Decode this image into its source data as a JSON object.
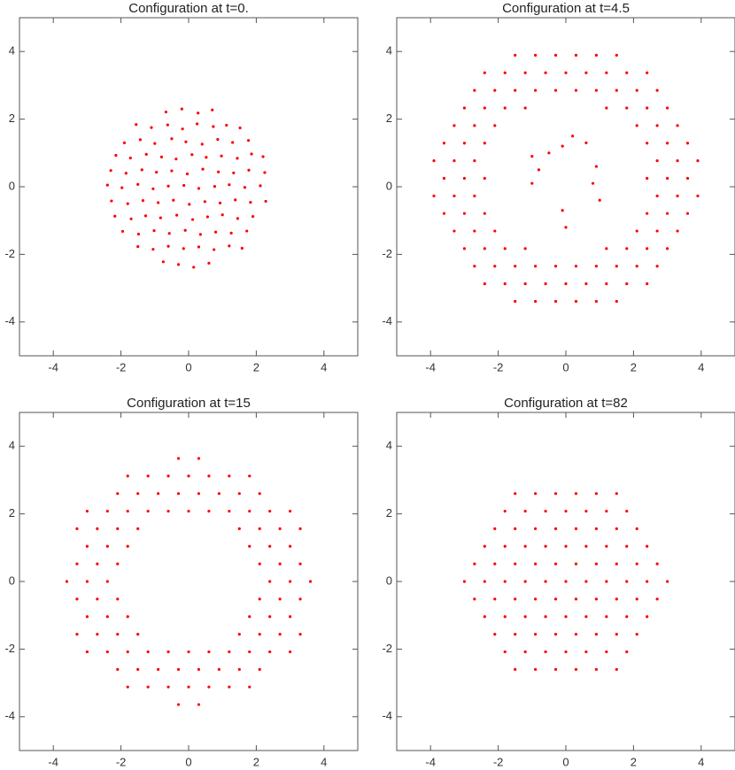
{
  "chart_data": [
    {
      "type": "scatter",
      "title": "Configuration at  t=0.",
      "color": "#ff0000",
      "xlim": [
        -5,
        5
      ],
      "ylim": [
        -5,
        5
      ],
      "xticks": [
        -4,
        -2,
        0,
        2,
        4
      ],
      "yticks": [
        -4,
        -2,
        0,
        2,
        4
      ],
      "x": [
        -0.67,
        -0.2,
        0.28,
        0.7,
        -1.55,
        -1.1,
        -0.62,
        -0.18,
        0.25,
        0.73,
        1.12,
        1.52,
        -1.9,
        -1.43,
        -1.0,
        -0.5,
        -0.08,
        0.4,
        0.86,
        1.3,
        1.77,
        -2.15,
        -1.72,
        -1.25,
        -0.8,
        -0.37,
        0.1,
        0.52,
        0.97,
        1.44,
        1.86,
        2.2,
        -2.3,
        -1.85,
        -1.38,
        -0.95,
        -0.5,
        -0.04,
        0.42,
        0.88,
        1.33,
        1.78,
        2.25,
        -2.4,
        -1.97,
        -1.5,
        -1.05,
        -0.6,
        -0.14,
        0.3,
        0.77,
        1.2,
        1.66,
        2.12,
        -2.28,
        -1.8,
        -1.35,
        -0.9,
        -0.45,
        0.02,
        0.48,
        0.93,
        1.38,
        1.83,
        2.28,
        -2.18,
        -1.7,
        -1.27,
        -0.83,
        -0.35,
        0.12,
        0.56,
        1.0,
        1.45,
        1.9,
        -1.95,
        -1.48,
        -1.02,
        -0.57,
        -0.1,
        0.35,
        0.8,
        1.26,
        1.72,
        -1.5,
        -1.05,
        -0.6,
        -0.15,
        0.3,
        0.75,
        1.2,
        1.58,
        -0.75,
        -0.3,
        0.15,
        0.6
      ],
      "y": [
        2.21,
        2.3,
        2.18,
        2.27,
        1.84,
        1.75,
        1.83,
        1.71,
        1.86,
        1.78,
        1.82,
        1.74,
        1.3,
        1.39,
        1.28,
        1.42,
        1.33,
        1.26,
        1.4,
        1.31,
        1.37,
        0.93,
        0.85,
        0.96,
        0.88,
        0.82,
        0.95,
        0.87,
        0.91,
        0.84,
        0.97,
        0.89,
        0.48,
        0.4,
        0.5,
        0.43,
        0.47,
        0.38,
        0.52,
        0.44,
        0.41,
        0.49,
        0.42,
        0.05,
        -0.03,
        0.07,
        -0.06,
        0.02,
        0.04,
        -0.05,
        0.01,
        0.06,
        -0.02,
        0.03,
        -0.42,
        -0.5,
        -0.41,
        -0.47,
        -0.4,
        -0.52,
        -0.44,
        -0.48,
        -0.39,
        -0.46,
        -0.43,
        -0.87,
        -0.95,
        -0.86,
        -0.92,
        -0.84,
        -0.97,
        -0.89,
        -0.83,
        -0.94,
        -0.88,
        -1.32,
        -1.4,
        -1.3,
        -1.38,
        -1.29,
        -1.41,
        -1.34,
        -1.37,
        -1.31,
        -1.77,
        -1.85,
        -1.76,
        -1.83,
        -1.78,
        -1.86,
        -1.75,
        -1.82,
        -2.22,
        -2.3,
        -2.38,
        -2.26
      ]
    },
    {
      "type": "scatter",
      "title": "Configuration at  t=4.5",
      "color": "#ff0000",
      "xlim": [
        -5,
        5
      ],
      "ylim": [
        -5,
        5
      ],
      "xticks": [
        -4,
        -2,
        0,
        2,
        4
      ],
      "yticks": [
        -4,
        -2,
        0,
        2,
        4
      ],
      "x": [
        -1.5,
        -0.9,
        -0.3,
        0.3,
        0.9,
        1.5,
        -2.4,
        -1.8,
        -1.2,
        -0.6,
        0,
        0.6,
        1.2,
        1.8,
        2.4,
        -2.7,
        -2.1,
        -1.5,
        -0.9,
        -0.3,
        0.3,
        0.9,
        1.5,
        2.1,
        2.7,
        -3,
        -2.4,
        -1.8,
        -1.2,
        1.2,
        1.8,
        2.4,
        3,
        -3.3,
        -2.7,
        -2.1,
        2.1,
        2.7,
        3.3,
        -3.6,
        -3,
        -2.4,
        2.4,
        3,
        3.6,
        -3.9,
        -3.3,
        -2.7,
        2.7,
        3.3,
        3.9,
        -3.6,
        -3,
        -2.4,
        2.4,
        3,
        3.6,
        -3.9,
        -3.3,
        -2.7,
        2.7,
        3.3,
        3.9,
        -3.6,
        -3,
        -2.4,
        2.4,
        3,
        3.6,
        -3.3,
        -2.7,
        -2.1,
        2.1,
        2.7,
        3.3,
        -3,
        -2.4,
        -1.8,
        -1.2,
        1.2,
        1.8,
        2.4,
        3,
        -2.7,
        -2.1,
        -1.5,
        -0.9,
        -0.3,
        0.3,
        0.9,
        1.5,
        2.1,
        2.7,
        -2.4,
        -1.8,
        -1.2,
        -0.6,
        0,
        0.6,
        1.2,
        1.8,
        2.4,
        -1.5,
        -0.9,
        -0.3,
        0.3,
        0.9,
        1.5,
        -1,
        -0.8,
        -1,
        -0.5,
        0.2,
        -0.1,
        0.6,
        0.9,
        0.8,
        1,
        0,
        -0.1
      ],
      "y": [
        3.89,
        3.89,
        3.89,
        3.89,
        3.89,
        3.89,
        3.37,
        3.37,
        3.37,
        3.37,
        3.37,
        3.37,
        3.37,
        3.37,
        3.37,
        2.85,
        2.85,
        2.85,
        2.85,
        2.85,
        2.85,
        2.85,
        2.85,
        2.85,
        2.85,
        2.33,
        2.33,
        2.33,
        2.33,
        2.33,
        2.33,
        2.33,
        2.33,
        1.81,
        1.81,
        1.81,
        1.81,
        1.81,
        1.81,
        1.29,
        1.29,
        1.29,
        1.29,
        1.29,
        1.29,
        0.77,
        0.77,
        0.77,
        0.77,
        0.77,
        0.77,
        0.25,
        0.25,
        0.25,
        0.25,
        0.25,
        0.25,
        -0.27,
        -0.27,
        -0.27,
        -0.27,
        -0.27,
        -0.27,
        -0.79,
        -0.79,
        -0.79,
        -0.79,
        -0.79,
        -0.79,
        -1.31,
        -1.31,
        -1.31,
        -1.31,
        -1.31,
        -1.31,
        -1.83,
        -1.83,
        -1.83,
        -1.83,
        -1.83,
        -1.83,
        -1.83,
        -1.83,
        -2.35,
        -2.35,
        -2.35,
        -2.35,
        -2.35,
        -2.35,
        -2.35,
        -2.35,
        -2.35,
        -2.35,
        -2.87,
        -2.87,
        -2.87,
        -2.87,
        -2.87,
        -2.87,
        -2.87,
        -2.87,
        -2.87,
        -3.39,
        -3.39,
        -3.39,
        -3.39,
        -3.39,
        -3.39,
        0.9,
        0.5,
        0.1,
        1,
        1.5,
        1.2,
        1.3,
        0.6,
        0.1,
        -0.4,
        -1.2,
        -0.7
      ]
    },
    {
      "type": "scatter",
      "title": "Configuration at  t=15",
      "color": "#ff0000",
      "xlim": [
        -5,
        5
      ],
      "ylim": [
        -5,
        5
      ],
      "xticks": [
        -4,
        -2,
        0,
        2,
        4
      ],
      "yticks": [
        -4,
        -2,
        0,
        2,
        4
      ],
      "x": [
        -0.3,
        0.3,
        -1.8,
        -1.2,
        -0.6,
        0,
        0.6,
        1.2,
        1.8,
        -2.1,
        -1.5,
        -0.9,
        -0.3,
        0.3,
        0.9,
        1.5,
        2.1,
        -3,
        -2.4,
        -1.8,
        -1.2,
        -0.6,
        0,
        0.6,
        1.2,
        1.8,
        2.4,
        3,
        -3.3,
        -2.7,
        -2.1,
        -1.5,
        1.5,
        2.1,
        2.7,
        3.3,
        -3,
        -2.4,
        -1.8,
        1.8,
        2.4,
        3,
        -3.3,
        -2.7,
        -2.1,
        2.1,
        2.7,
        3.3,
        -3.6,
        -3,
        -2.4,
        2.4,
        3,
        3.6,
        -3.3,
        -2.7,
        -2.1,
        2.1,
        2.7,
        3.3,
        -3,
        -2.4,
        -1.8,
        1.8,
        2.4,
        3,
        -3.3,
        -2.7,
        -2.1,
        -1.5,
        1.5,
        2.1,
        2.7,
        3.3,
        -3,
        -2.4,
        -1.8,
        -1.2,
        -0.6,
        0,
        0.6,
        1.2,
        1.8,
        2.4,
        3,
        -2.1,
        -1.5,
        -0.9,
        -0.3,
        0.3,
        0.9,
        1.5,
        2.1,
        -1.8,
        -1.2,
        -0.6,
        0,
        0.6,
        1.2,
        1.8,
        -0.3,
        0.3
      ],
      "y": [
        3.64,
        3.64,
        3.12,
        3.12,
        3.12,
        3.12,
        3.12,
        3.12,
        3.12,
        2.6,
        2.6,
        2.6,
        2.6,
        2.6,
        2.6,
        2.6,
        2.6,
        2.08,
        2.08,
        2.08,
        2.08,
        2.08,
        2.08,
        2.08,
        2.08,
        2.08,
        2.08,
        2.08,
        1.56,
        1.56,
        1.56,
        1.56,
        1.56,
        1.56,
        1.56,
        1.56,
        1.04,
        1.04,
        1.04,
        1.04,
        1.04,
        1.04,
        0.52,
        0.52,
        0.52,
        0.52,
        0.52,
        0.52,
        0,
        0,
        0,
        0,
        0,
        0,
        -0.52,
        -0.52,
        -0.52,
        -0.52,
        -0.52,
        -0.52,
        -1.04,
        -1.04,
        -1.04,
        -1.04,
        -1.04,
        -1.04,
        -1.56,
        -1.56,
        -1.56,
        -1.56,
        -1.56,
        -1.56,
        -1.56,
        -1.56,
        -2.08,
        -2.08,
        -2.08,
        -2.08,
        -2.08,
        -2.08,
        -2.08,
        -2.08,
        -2.08,
        -2.08,
        -2.08,
        -2.6,
        -2.6,
        -2.6,
        -2.6,
        -2.6,
        -2.6,
        -2.6,
        -2.6,
        -3.12,
        -3.12,
        -3.12,
        -3.12,
        -3.12,
        -3.12,
        -3.12,
        -3.64,
        -3.64
      ]
    },
    {
      "type": "scatter",
      "title": "Configuration at  t=82",
      "color": "#ff0000",
      "xlim": [
        -5,
        5
      ],
      "ylim": [
        -5,
        5
      ],
      "xticks": [
        -4,
        -2,
        0,
        2,
        4
      ],
      "yticks": [
        -4,
        -2,
        0,
        2,
        4
      ],
      "x": [
        -1.5,
        -0.9,
        -0.3,
        0.3,
        0.9,
        1.5,
        -1.8,
        -1.2,
        -0.6,
        0,
        0.6,
        1.2,
        1.8,
        -2.1,
        -1.5,
        -0.9,
        -0.3,
        0.3,
        0.9,
        1.5,
        2.1,
        -2.4,
        -1.8,
        -1.2,
        -0.6,
        0,
        0.6,
        1.2,
        1.8,
        2.4,
        -2.7,
        -2.1,
        -1.5,
        -0.9,
        -0.3,
        0.3,
        0.9,
        1.5,
        2.1,
        2.7,
        -3,
        -2.4,
        -1.8,
        -1.2,
        -0.6,
        0,
        0.6,
        1.2,
        1.8,
        2.4,
        3,
        -2.7,
        -2.1,
        -1.5,
        -0.9,
        -0.3,
        0.3,
        0.9,
        1.5,
        2.1,
        2.7,
        -2.4,
        -1.8,
        -1.2,
        -0.6,
        0,
        0.6,
        1.2,
        1.8,
        2.4,
        -2.1,
        -1.5,
        -0.9,
        -0.3,
        0.3,
        0.9,
        1.5,
        2.1,
        -1.8,
        -1.2,
        -0.6,
        0,
        0.6,
        1.2,
        1.8,
        -1.5,
        -0.9,
        -0.3,
        0.3,
        0.9,
        1.5
      ],
      "y": [
        2.6,
        2.6,
        2.6,
        2.6,
        2.6,
        2.6,
        2.08,
        2.08,
        2.08,
        2.08,
        2.08,
        2.08,
        2.08,
        1.56,
        1.56,
        1.56,
        1.56,
        1.56,
        1.56,
        1.56,
        1.56,
        1.04,
        1.04,
        1.04,
        1.04,
        1.04,
        1.04,
        1.04,
        1.04,
        1.04,
        0.52,
        0.52,
        0.52,
        0.52,
        0.52,
        0.52,
        0.52,
        0.52,
        0.52,
        0.52,
        0,
        0,
        0,
        0,
        0,
        0,
        0,
        0,
        0,
        0,
        0,
        -0.52,
        -0.52,
        -0.52,
        -0.52,
        -0.52,
        -0.52,
        -0.52,
        -0.52,
        -0.52,
        -0.52,
        -1.04,
        -1.04,
        -1.04,
        -1.04,
        -1.04,
        -1.04,
        -1.04,
        -1.04,
        -1.04,
        -1.56,
        -1.56,
        -1.56,
        -1.56,
        -1.56,
        -1.56,
        -1.56,
        -1.56,
        -2.08,
        -2.08,
        -2.08,
        -2.08,
        -2.08,
        -2.08,
        -2.08,
        -2.6,
        -2.6,
        -2.6,
        -2.6,
        -2.6,
        -2.6
      ]
    }
  ]
}
